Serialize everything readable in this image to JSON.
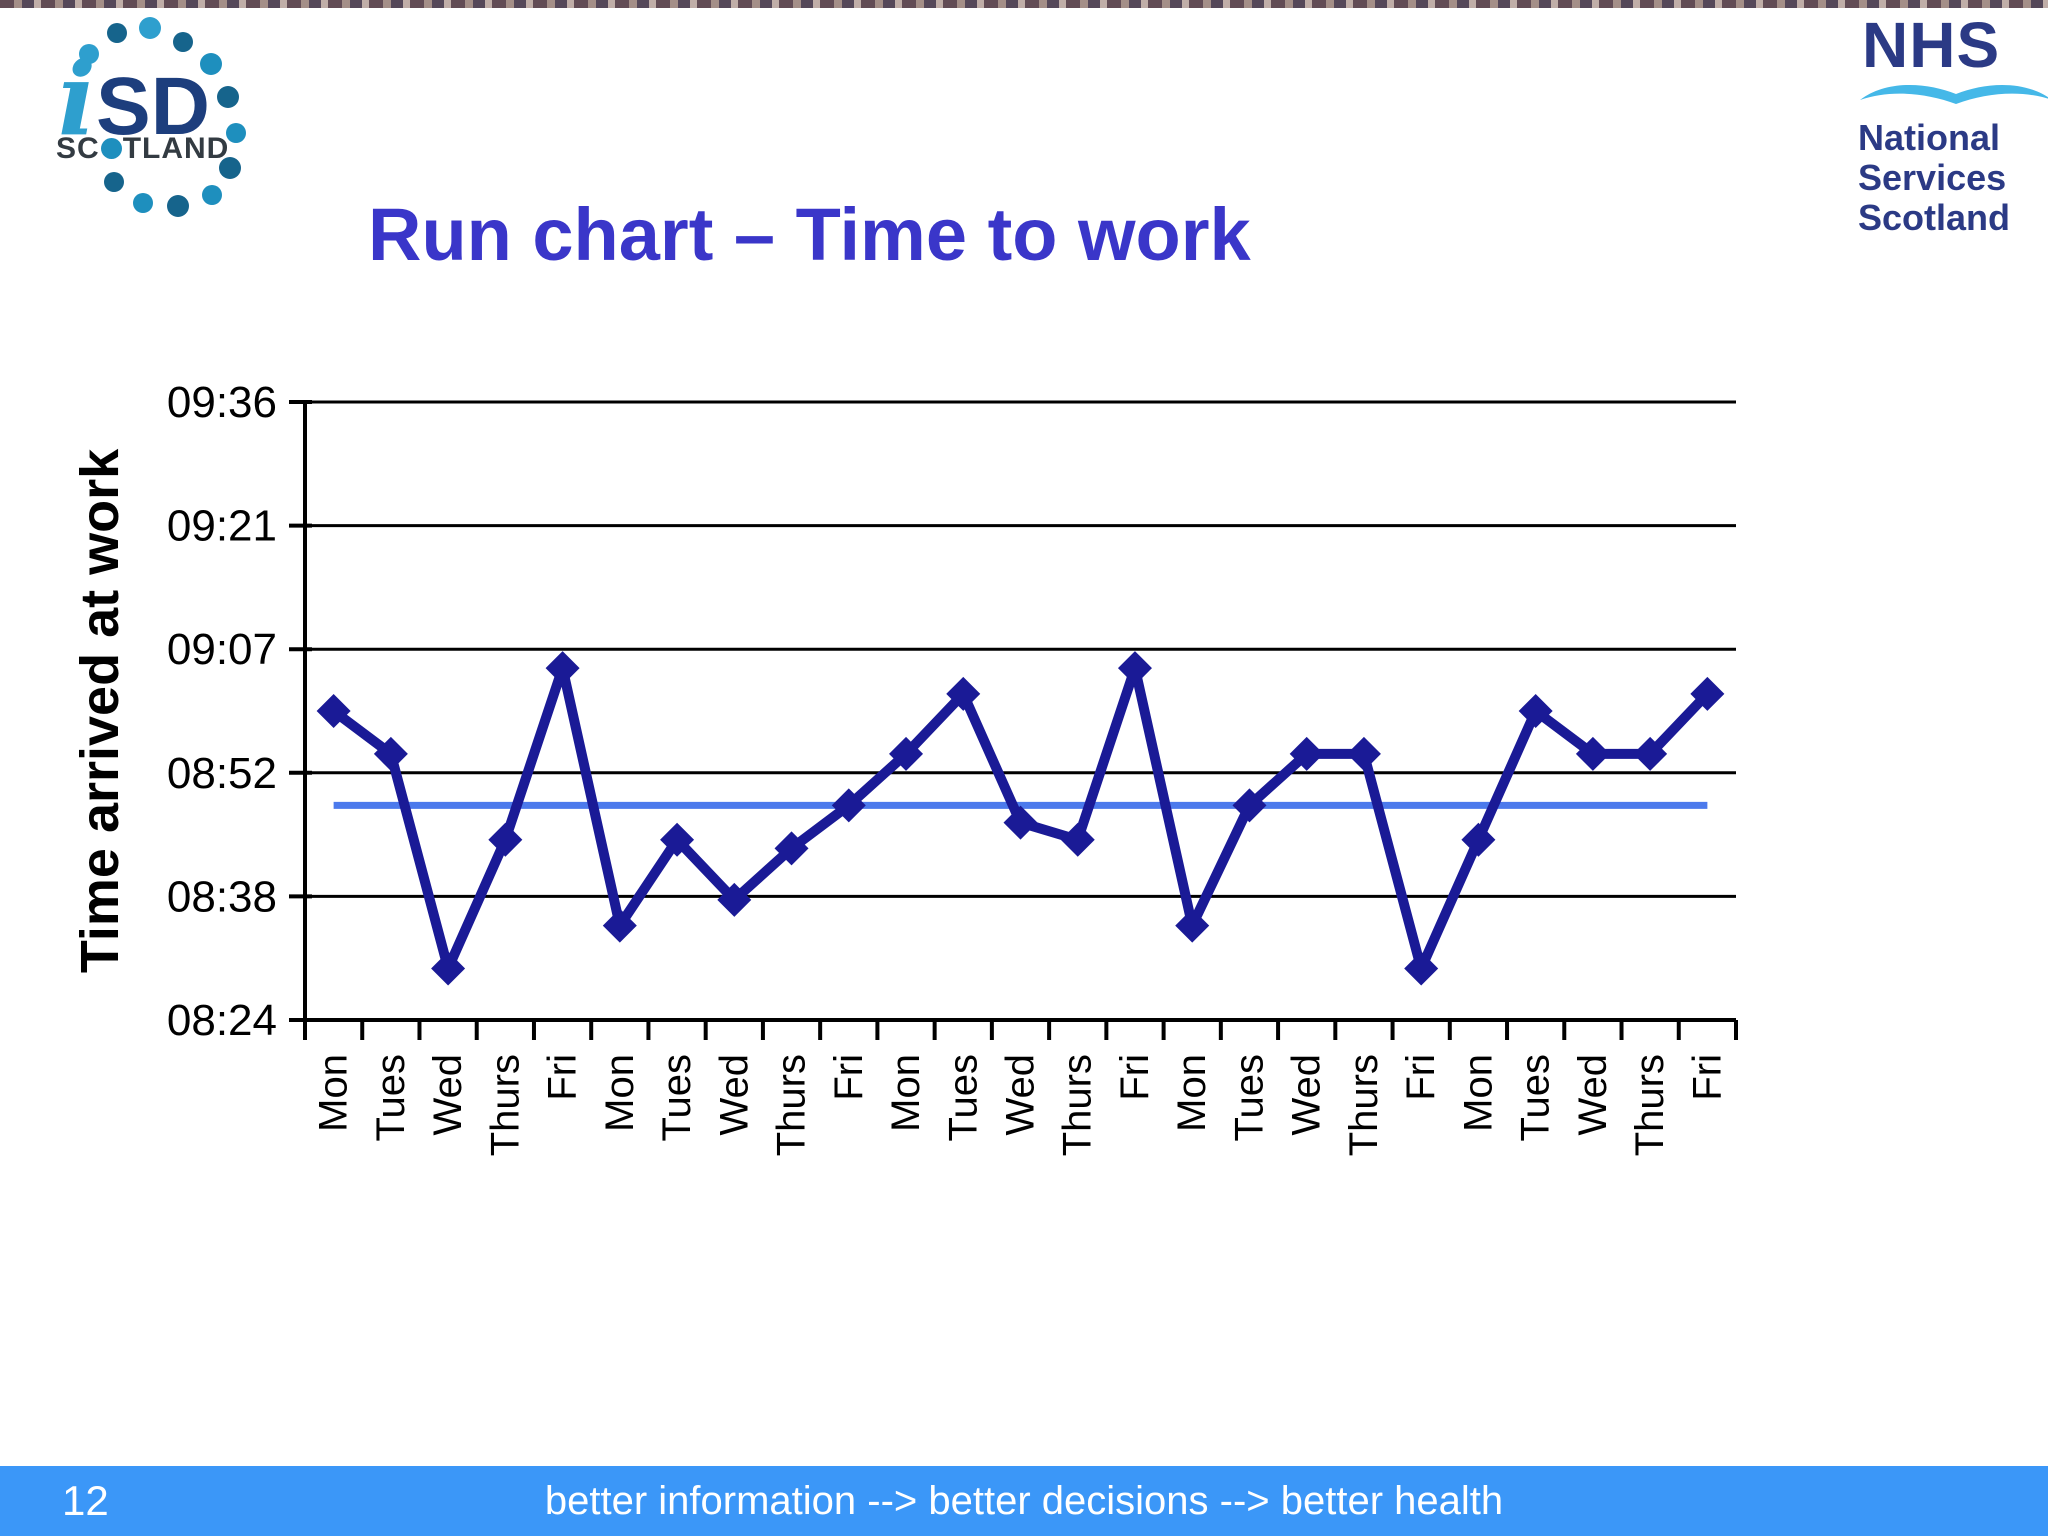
{
  "title": "Run chart – Time to work",
  "logos": {
    "isd": {
      "i": "i",
      "sd": "SD",
      "scotland_pre": "SC",
      "scotland_post": "TLAND"
    },
    "nhs": {
      "name": "NHS",
      "lines": [
        "National",
        "Services",
        "Scotland"
      ]
    }
  },
  "footer": {
    "page_number": "12",
    "text": "better information --> better decisions --> better health"
  },
  "colors": {
    "title": "#3A36C9",
    "series": "#1A1A96",
    "median": "#4C7AEC",
    "footer_bg": "#3B97F8",
    "footer_text": "#FFFFFF",
    "axis": "#000000",
    "grid": "#000000",
    "nhs_navy": "#2B3A85",
    "nhs_swoosh": "#45B8E8",
    "isd_light": "#2E9FCE",
    "isd_dark": "#1D3E7D",
    "isd_teal": "#1E8FBE",
    "isd_text": "#333B42"
  },
  "chart_data": {
    "type": "line",
    "title": "",
    "xlabel": "",
    "ylabel": "Time arrived at work",
    "x_categories": [
      "Mon",
      "Tues",
      "Wed",
      "Thurs",
      "Fri",
      "Mon",
      "Tues",
      "Wed",
      "Thurs",
      "Fri",
      "Mon",
      "Tues",
      "Wed",
      "Thurs",
      "Fri",
      "Mon",
      "Tues",
      "Wed",
      "Thurs",
      "Fri",
      "Mon",
      "Tues",
      "Wed",
      "Thurs",
      "Fri"
    ],
    "values": [
      "09:00",
      "08:55",
      "08:30",
      "08:45",
      "09:05",
      "08:35",
      "08:45",
      "08:38",
      "08:44",
      "08:49",
      "08:55",
      "09:02",
      "08:47",
      "08:45",
      "09:05",
      "08:35",
      "08:49",
      "08:55",
      "08:55",
      "08:30",
      "08:45",
      "09:00",
      "08:55",
      "08:55",
      "09:02"
    ],
    "median_line": "08:49",
    "y_ticks": [
      "08:24",
      "08:38",
      "08:52",
      "09:07",
      "09:21",
      "09:36"
    ],
    "y_range_minutes": [
      504,
      576
    ],
    "grid": true,
    "legend": "none",
    "marker": "diamond"
  }
}
